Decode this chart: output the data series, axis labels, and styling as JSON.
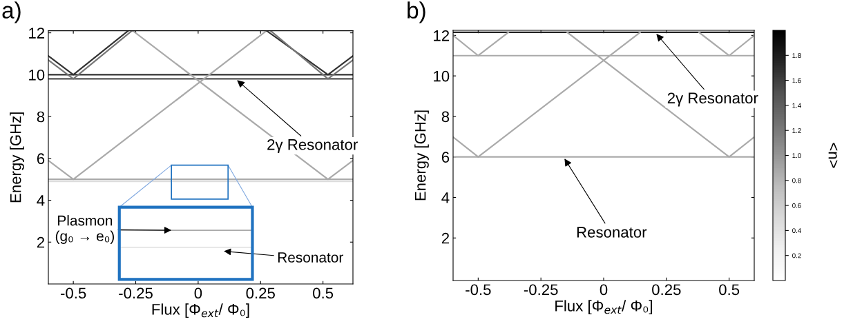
{
  "chart_data": [
    {
      "type": "line",
      "title": "a)",
      "xlabel": "Flux [Φ$_{ext}$/ Φ₀]",
      "ylabel": "Energy [GHz]",
      "xlim": [
        -0.6,
        0.62
      ],
      "ylim": [
        0,
        12.1
      ],
      "xticks": [
        -0.5,
        -0.25,
        0,
        0.25,
        0.5
      ],
      "yticks": [
        2,
        4,
        6,
        8,
        10,
        12
      ],
      "series": [
        {
          "color": "#333333",
          "x": [
            -0.6,
            0.62
          ],
          "values": [
            10.0,
            10.0
          ]
        },
        {
          "color": "#555555",
          "x": [
            -0.6,
            0.62
          ],
          "values": [
            9.8,
            9.8
          ]
        },
        {
          "color": "#aaaaaa",
          "x": [
            -0.6,
            0.62
          ],
          "values": [
            5.0,
            5.0
          ]
        },
        {
          "color": "#dddddd",
          "x": [
            -0.6,
            0.62
          ],
          "values": [
            4.9,
            4.9
          ]
        },
        {
          "color": "#aaaaaa",
          "x": [
            -0.6,
            -0.5,
            0.274
          ],
          "values": [
            5.9,
            5.0,
            12.1
          ]
        },
        {
          "color": "#aaaaaa",
          "x": [
            -0.262,
            0.52,
            0.62
          ],
          "values": [
            12.1,
            5.0,
            5.9
          ]
        },
        {
          "color": "#333333",
          "x": [
            -0.6,
            -0.5,
            -0.28
          ],
          "values": [
            10.9,
            10.0,
            12.1
          ]
        },
        {
          "color": "#777777",
          "x": [
            -0.6,
            -0.5,
            -0.265
          ],
          "values": [
            10.7,
            9.8,
            12.1
          ]
        },
        {
          "color": "#333333",
          "x": [
            0.274,
            0.52,
            0.62
          ],
          "values": [
            12.1,
            10.0,
            10.9
          ]
        },
        {
          "color": "#777777",
          "x": [
            0.29,
            0.52,
            0.62
          ],
          "values": [
            12.1,
            9.8,
            10.7
          ]
        }
      ],
      "annotations": [
        {
          "text": "2γ Resonator",
          "x": 0.15,
          "y": 9.8
        },
        "Plasmon\n(g₀ → e₀)",
        "Resonator"
      ]
    },
    {
      "type": "line",
      "title": "b)",
      "xlabel": "Flux [Φ$_{ext}$/ Φ₀]",
      "ylabel": "Energy [GHz]",
      "clabel": "<n>",
      "clim": [
        0,
        2
      ],
      "cticks": [
        0.2,
        0.4,
        0.6,
        0.8,
        {
          "value": 1,
          "label": "1.0"
        },
        1.2,
        1.4,
        1.6,
        1.8
      ],
      "xlim": [
        -0.6,
        0.6
      ],
      "ylim": [
        -0.1,
        12.25
      ],
      "xticks": [
        -0.5,
        -0.25,
        0,
        0.25,
        0.5
      ],
      "yticks": [
        2,
        4,
        6,
        8,
        10,
        12
      ],
      "series": [
        {
          "color": "#aaaaaa",
          "x": [
            -0.6,
            0.6
          ],
          "values": [
            6.0,
            6.0
          ]
        },
        {
          "color": "#aaaaaa",
          "x": [
            -0.6,
            0.6
          ],
          "values": [
            11.0,
            11.0
          ]
        },
        {
          "color": "#222222",
          "x": [
            -0.6,
            0.6
          ],
          "values": [
            12.15,
            12.15
          ]
        },
        {
          "color": "#aaaaaa",
          "x": [
            -0.6,
            -0.5,
            0.145
          ],
          "values": [
            6.98,
            6.0,
            12.15
          ]
        },
        {
          "color": "#aaaaaa",
          "x": [
            -0.145,
            0.5,
            0.6
          ],
          "values": [
            12.15,
            6.0,
            6.98
          ]
        },
        {
          "color": "#aaaaaa",
          "x": [
            -0.6,
            -0.5,
            -0.38
          ],
          "values": [
            12.0,
            11.0,
            12.15
          ]
        },
        {
          "color": "#aaaaaa",
          "x": [
            0.38,
            0.5,
            0.6
          ],
          "values": [
            12.15,
            11.0,
            12.0
          ]
        }
      ],
      "annotations": [
        {
          "text": "2γ Resonator",
          "x": 0.205,
          "y": 12.15
        },
        {
          "text": "Resonator",
          "x": -0.16,
          "y": 6.0
        }
      ]
    }
  ]
}
